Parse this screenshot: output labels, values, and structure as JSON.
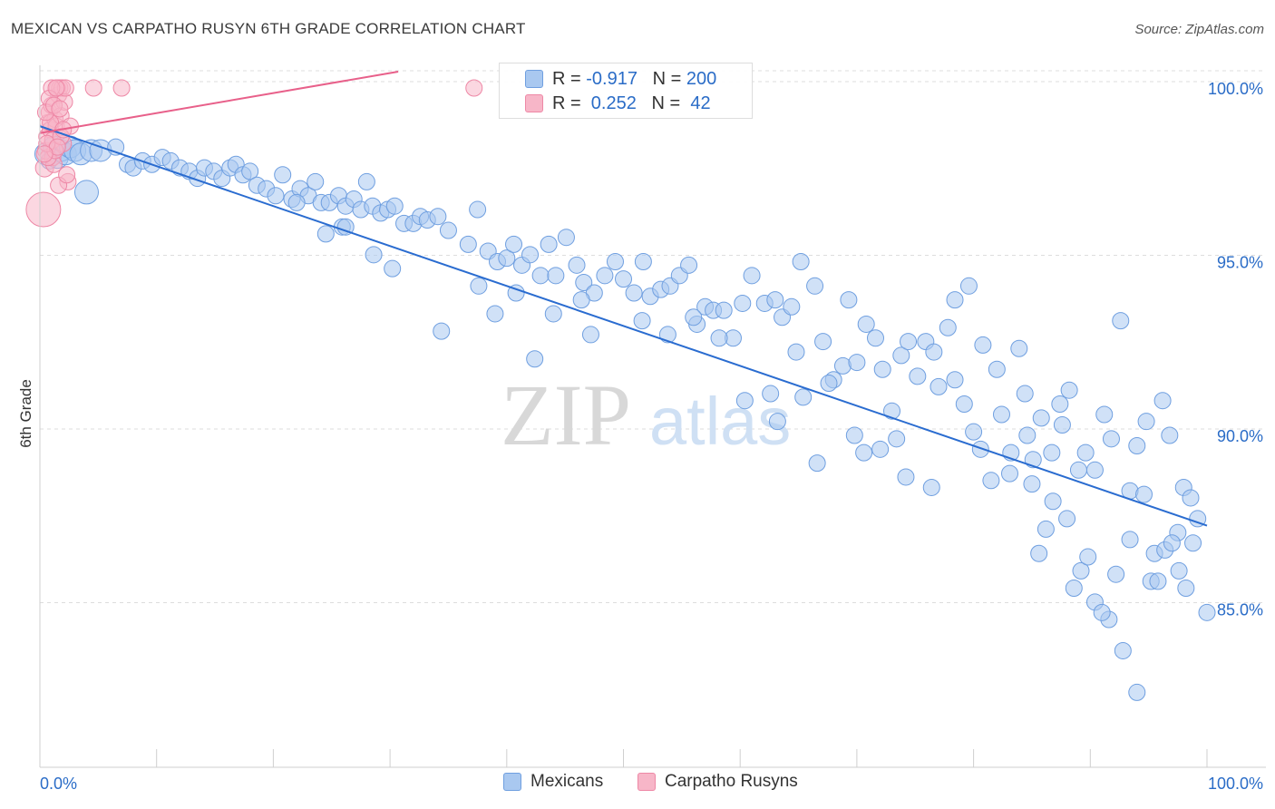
{
  "header": {
    "title": "MEXICAN VS CARPATHO RUSYN 6TH GRADE CORRELATION CHART",
    "source": "Source: ZipAtlas.com"
  },
  "watermark": {
    "zip": "ZIP",
    "atlas": "atlas"
  },
  "legend": {
    "rows": [
      {
        "r_label": "R = ",
        "r_value": "-0.917",
        "n_label": "N = ",
        "n_value": "200",
        "color": "#a9c8f0"
      },
      {
        "r_label": "R = ",
        "r_value": " 0.252",
        "n_label": "N = ",
        "n_value": " 42",
        "color": "#f7b6c8"
      }
    ]
  },
  "colors": {
    "blue_fill": "#a9c8f0",
    "blue_stroke": "#6f9fe0",
    "blue_line": "#2a6cd0",
    "pink_fill": "#f7b6c8",
    "pink_stroke": "#ee88a6",
    "pink_line": "#e8608a",
    "axis_label": "#2a6cc7",
    "grid": "#dddddd"
  },
  "chart_data": {
    "type": "scatter",
    "title": "MEXICAN VS CARPATHO RUSYN 6TH GRADE CORRELATION CHART",
    "xlabel": "",
    "ylabel": "6th Grade",
    "xlim": [
      0,
      100
    ],
    "ylim": [
      80,
      100.5
    ],
    "x_tick_labels": [
      "0.0%",
      "100.0%"
    ],
    "y_ticks": [
      85,
      90,
      95,
      100
    ],
    "y_tick_labels": [
      "85.0%",
      "90.0%",
      "95.0%",
      "100.0%"
    ],
    "grid": true,
    "legend_position": "top-center",
    "series": [
      {
        "name": "Mexicans",
        "color": "#a9c8f0",
        "r": -0.917,
        "n": 200,
        "trend": {
          "x": [
            0,
            100
          ],
          "y": [
            98.9,
            87.4
          ]
        },
        "points": [
          [
            0.5,
            98.1
          ],
          [
            0.8,
            97.9
          ],
          [
            1.2,
            98.3
          ],
          [
            1.5,
            98.0
          ],
          [
            1.8,
            98.2
          ],
          [
            2.2,
            98.1
          ],
          [
            2.6,
            98.3
          ],
          [
            3.0,
            98.2
          ],
          [
            3.5,
            98.1
          ],
          [
            4.0,
            97.0
          ],
          [
            4.4,
            98.2
          ],
          [
            5.2,
            98.2
          ],
          [
            6.5,
            98.3
          ],
          [
            7.5,
            97.8
          ],
          [
            8.0,
            97.7
          ],
          [
            8.8,
            97.9
          ],
          [
            9.6,
            97.8
          ],
          [
            10.5,
            98.0
          ],
          [
            11.2,
            97.9
          ],
          [
            12.0,
            97.7
          ],
          [
            12.8,
            97.6
          ],
          [
            13.5,
            97.4
          ],
          [
            14.1,
            97.7
          ],
          [
            14.9,
            97.6
          ],
          [
            15.6,
            97.4
          ],
          [
            16.3,
            97.7
          ],
          [
            16.8,
            97.8
          ],
          [
            17.4,
            97.5
          ],
          [
            18.0,
            97.6
          ],
          [
            18.6,
            97.2
          ],
          [
            19.4,
            97.1
          ],
          [
            20.2,
            96.9
          ],
          [
            20.8,
            97.5
          ],
          [
            21.6,
            96.8
          ],
          [
            22.3,
            97.1
          ],
          [
            23.0,
            96.9
          ],
          [
            23.6,
            97.3
          ],
          [
            24.1,
            96.7
          ],
          [
            24.8,
            96.7
          ],
          [
            25.6,
            96.9
          ],
          [
            26.2,
            96.6
          ],
          [
            26.9,
            96.8
          ],
          [
            27.5,
            96.5
          ],
          [
            28.0,
            97.3
          ],
          [
            28.5,
            96.6
          ],
          [
            29.2,
            96.4
          ],
          [
            29.8,
            96.5
          ],
          [
            30.4,
            96.6
          ],
          [
            31.2,
            96.1
          ],
          [
            32.0,
            96.1
          ],
          [
            32.6,
            96.3
          ],
          [
            33.2,
            96.2
          ],
          [
            34.1,
            96.3
          ],
          [
            35.0,
            95.9
          ],
          [
            25.9,
            96.0
          ],
          [
            36.7,
            95.5
          ],
          [
            37.5,
            96.5
          ],
          [
            38.4,
            95.3
          ],
          [
            39.2,
            95.0
          ],
          [
            40.0,
            95.1
          ],
          [
            40.6,
            95.5
          ],
          [
            41.3,
            94.9
          ],
          [
            42.0,
            95.2
          ],
          [
            42.9,
            94.6
          ],
          [
            43.6,
            95.5
          ],
          [
            44.2,
            94.6
          ],
          [
            45.1,
            95.7
          ],
          [
            46.0,
            94.9
          ],
          [
            46.6,
            94.4
          ],
          [
            47.5,
            94.1
          ],
          [
            48.4,
            94.6
          ],
          [
            49.3,
            95.0
          ],
          [
            50.0,
            94.5
          ],
          [
            50.9,
            94.1
          ],
          [
            51.7,
            95.0
          ],
          [
            52.3,
            94.0
          ],
          [
            53.2,
            94.2
          ],
          [
            54.0,
            94.3
          ],
          [
            54.8,
            94.6
          ],
          [
            55.6,
            94.9
          ],
          [
            56.3,
            93.2
          ],
          [
            57.0,
            93.7
          ],
          [
            57.7,
            93.6
          ],
          [
            58.6,
            93.6
          ],
          [
            59.4,
            92.8
          ],
          [
            60.2,
            93.8
          ],
          [
            61.0,
            94.6
          ],
          [
            62.1,
            93.8
          ],
          [
            63.0,
            93.9
          ],
          [
            63.6,
            93.4
          ],
          [
            64.4,
            93.7
          ],
          [
            65.2,
            95.0
          ],
          [
            66.4,
            94.3
          ],
          [
            67.1,
            92.7
          ],
          [
            68.0,
            91.6
          ],
          [
            68.8,
            92.0
          ],
          [
            69.3,
            93.9
          ],
          [
            70.0,
            92.1
          ],
          [
            70.8,
            93.2
          ],
          [
            71.6,
            92.8
          ],
          [
            72.2,
            91.9
          ],
          [
            73.0,
            90.7
          ],
          [
            73.8,
            92.3
          ],
          [
            74.4,
            92.7
          ],
          [
            75.2,
            91.7
          ],
          [
            75.9,
            92.7
          ],
          [
            76.6,
            92.4
          ],
          [
            77.0,
            91.4
          ],
          [
            77.8,
            93.1
          ],
          [
            78.4,
            91.6
          ],
          [
            79.2,
            90.9
          ],
          [
            80.0,
            90.1
          ],
          [
            80.6,
            89.6
          ],
          [
            81.5,
            88.7
          ],
          [
            82.4,
            90.6
          ],
          [
            83.1,
            88.9
          ],
          [
            83.9,
            92.5
          ],
          [
            84.6,
            90.0
          ],
          [
            85.1,
            89.3
          ],
          [
            85.8,
            90.5
          ],
          [
            86.7,
            89.5
          ],
          [
            87.6,
            90.3
          ],
          [
            88.2,
            91.3
          ],
          [
            89.0,
            89.0
          ],
          [
            89.6,
            89.5
          ],
          [
            90.4,
            89.0
          ],
          [
            91.2,
            90.6
          ],
          [
            91.8,
            89.9
          ],
          [
            92.6,
            93.3
          ],
          [
            93.4,
            88.4
          ],
          [
            94.0,
            89.7
          ],
          [
            94.8,
            90.4
          ],
          [
            95.5,
            86.6
          ],
          [
            96.2,
            91.0
          ],
          [
            96.8,
            90.0
          ],
          [
            97.5,
            87.2
          ],
          [
            98.0,
            88.5
          ],
          [
            98.6,
            88.2
          ],
          [
            99.2,
            87.6
          ],
          [
            100.0,
            84.9
          ],
          [
            78.4,
            93.9
          ],
          [
            79.6,
            94.3
          ],
          [
            80.8,
            92.6
          ],
          [
            82.0,
            91.9
          ],
          [
            83.2,
            89.5
          ],
          [
            84.4,
            91.2
          ],
          [
            85.6,
            86.6
          ],
          [
            86.8,
            88.1
          ],
          [
            88.0,
            87.6
          ],
          [
            89.2,
            86.1
          ],
          [
            90.4,
            85.2
          ],
          [
            91.6,
            84.7
          ],
          [
            92.8,
            83.8
          ],
          [
            94.0,
            82.6
          ],
          [
            95.2,
            85.8
          ],
          [
            96.4,
            86.7
          ],
          [
            97.6,
            86.1
          ],
          [
            98.8,
            86.9
          ],
          [
            85.0,
            88.6
          ],
          [
            86.2,
            87.3
          ],
          [
            87.4,
            90.9
          ],
          [
            88.6,
            85.6
          ],
          [
            89.8,
            86.5
          ],
          [
            91.0,
            84.9
          ],
          [
            92.2,
            86.0
          ],
          [
            93.4,
            87.0
          ],
          [
            94.6,
            88.3
          ],
          [
            95.8,
            85.8
          ],
          [
            97.0,
            86.9
          ],
          [
            98.2,
            85.6
          ],
          [
            63.2,
            90.4
          ],
          [
            65.4,
            91.1
          ],
          [
            67.6,
            91.5
          ],
          [
            69.8,
            90.0
          ],
          [
            72.0,
            89.6
          ],
          [
            74.2,
            88.8
          ],
          [
            76.4,
            88.5
          ],
          [
            66.6,
            89.2
          ],
          [
            70.6,
            89.5
          ],
          [
            73.4,
            89.9
          ],
          [
            60.4,
            91.0
          ],
          [
            62.6,
            91.2
          ],
          [
            64.8,
            92.4
          ],
          [
            58.2,
            92.8
          ],
          [
            56.0,
            93.4
          ],
          [
            53.8,
            92.9
          ],
          [
            51.6,
            93.3
          ],
          [
            47.2,
            92.9
          ],
          [
            44.0,
            93.5
          ],
          [
            40.8,
            94.1
          ],
          [
            37.6,
            94.3
          ],
          [
            34.4,
            93.0
          ],
          [
            30.2,
            94.8
          ],
          [
            28.6,
            95.2
          ],
          [
            26.2,
            96.0
          ],
          [
            24.5,
            95.8
          ],
          [
            22.0,
            96.7
          ],
          [
            39.0,
            93.5
          ],
          [
            42.4,
            92.2
          ],
          [
            46.4,
            93.9
          ]
        ]
      },
      {
        "name": "Carpatho Rusyns",
        "color": "#f7b6c8",
        "r": 0.252,
        "n": 42,
        "trend": {
          "x": [
            0,
            30.7
          ],
          "y": [
            98.7,
            100.0
          ]
        },
        "points": [
          [
            0.3,
            96.5
          ],
          [
            0.4,
            97.7
          ],
          [
            0.5,
            98.2
          ],
          [
            0.6,
            98.6
          ],
          [
            0.7,
            99.0
          ],
          [
            0.8,
            99.3
          ],
          [
            0.9,
            98.8
          ],
          [
            1.0,
            99.5
          ],
          [
            1.1,
            98.0
          ],
          [
            1.2,
            97.8
          ],
          [
            1.3,
            99.1
          ],
          [
            1.4,
            98.9
          ],
          [
            1.5,
            100.0
          ],
          [
            1.6,
            99.8
          ],
          [
            1.7,
            100.0
          ],
          [
            1.8,
            99.2
          ],
          [
            1.9,
            100.0
          ],
          [
            2.0,
            98.4
          ],
          [
            2.1,
            99.6
          ],
          [
            2.2,
            100.0
          ],
          [
            2.4,
            97.3
          ],
          [
            2.6,
            98.9
          ],
          [
            1.0,
            100.0
          ],
          [
            0.9,
            99.0
          ],
          [
            1.1,
            98.5
          ],
          [
            0.7,
            98.0
          ],
          [
            0.8,
            99.7
          ],
          [
            1.3,
            98.2
          ],
          [
            1.6,
            97.2
          ],
          [
            0.5,
            99.3
          ],
          [
            0.6,
            98.4
          ],
          [
            1.2,
            99.5
          ],
          [
            1.4,
            100.0
          ],
          [
            1.7,
            99.4
          ],
          [
            1.8,
            98.6
          ],
          [
            4.6,
            100.0
          ],
          [
            7.0,
            100.0
          ],
          [
            37.2,
            100.0
          ],
          [
            2.3,
            97.5
          ],
          [
            2.0,
            98.8
          ],
          [
            1.5,
            98.3
          ],
          [
            0.4,
            98.1
          ]
        ]
      }
    ]
  }
}
